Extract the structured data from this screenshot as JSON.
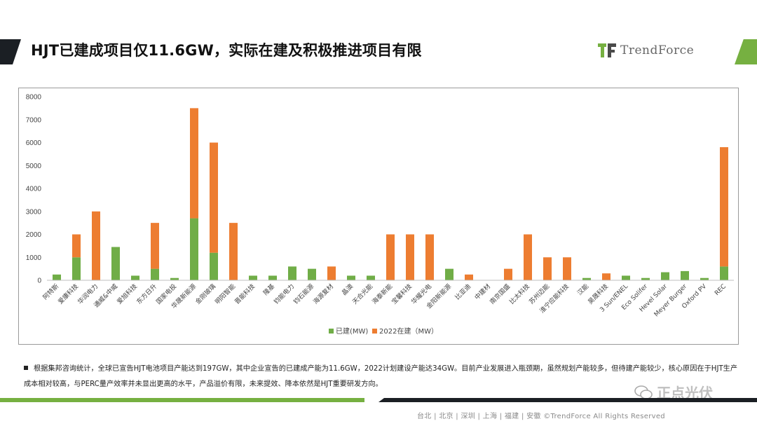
{
  "title": "HJT已建成项目仅11.6GW，实际在建及积极推进项目有限",
  "logo_text": "TrendForce",
  "note": "根据集邦咨询统计，全球已宣告HJT电池项目产能达到197GW，其中企业宣告的已建成产能为11.6GW，2022计划建设产能达34GW。目前产业发展进入瓶颈期，虽然规划产能较多，但待建产能较少，核心原因在于HJT生产成本相对较高，与PERC量产效率并未显出更高的水平，产品溢价有限，未来提效、降本依然是HJT重要研发方向。",
  "footer": "台北 | 北京 | 深圳 | 上海 | 福建 | 安徽   ©TrendForce All Rights Reserved",
  "watermark": "正点光伏",
  "colors": {
    "built": "#70ad47",
    "construction": "#ed7d31"
  },
  "chart_data": {
    "type": "bar",
    "stacked": true,
    "categories": [
      "阿特斯",
      "爱康科技",
      "华润电力",
      "通威&中威",
      "爱旭科技",
      "东方日升",
      "国家电投",
      "华晟新能源",
      "金刚玻璃",
      "明阳智能",
      "晋能科技",
      "隆基",
      "钧能电力",
      "钧石能源",
      "海源复材",
      "晶澳",
      "天合光能",
      "海泰新能",
      "宝馨科技",
      "华耀光电",
      "金阳新能源",
      "比亚迪",
      "中建材",
      "南京国盛",
      "比太科技",
      "苏州迈能",
      "淮宁应能科技",
      "汉能",
      "昊晟科技",
      "3 Sun/ENEL",
      "Eco Solifer",
      "Hevel Solar",
      "Meyer Burger",
      "Oxford PV",
      "REC"
    ],
    "series": [
      {
        "name": "已建(MW)",
        "values": [
          250,
          1000,
          0,
          1450,
          200,
          500,
          100,
          2700,
          1200,
          0,
          200,
          200,
          600,
          500,
          0,
          200,
          200,
          0,
          0,
          0,
          500,
          0,
          0,
          0,
          0,
          0,
          0,
          100,
          0,
          200,
          100,
          350,
          400,
          100,
          600
        ]
      },
      {
        "name": "2022在建（MW）",
        "values": [
          0,
          1000,
          3000,
          0,
          0,
          2000,
          0,
          4800,
          4800,
          2500,
          0,
          0,
          0,
          0,
          600,
          0,
          0,
          2000,
          2000,
          2000,
          0,
          250,
          0,
          500,
          2000,
          1000,
          1000,
          0,
          300,
          0,
          0,
          0,
          0,
          0,
          5200
        ]
      }
    ],
    "ylim": [
      0,
      8000
    ],
    "yticks": [
      0,
      1000,
      2000,
      3000,
      4000,
      5000,
      6000,
      7000,
      8000
    ],
    "legend_position": "bottom",
    "grid": false
  }
}
